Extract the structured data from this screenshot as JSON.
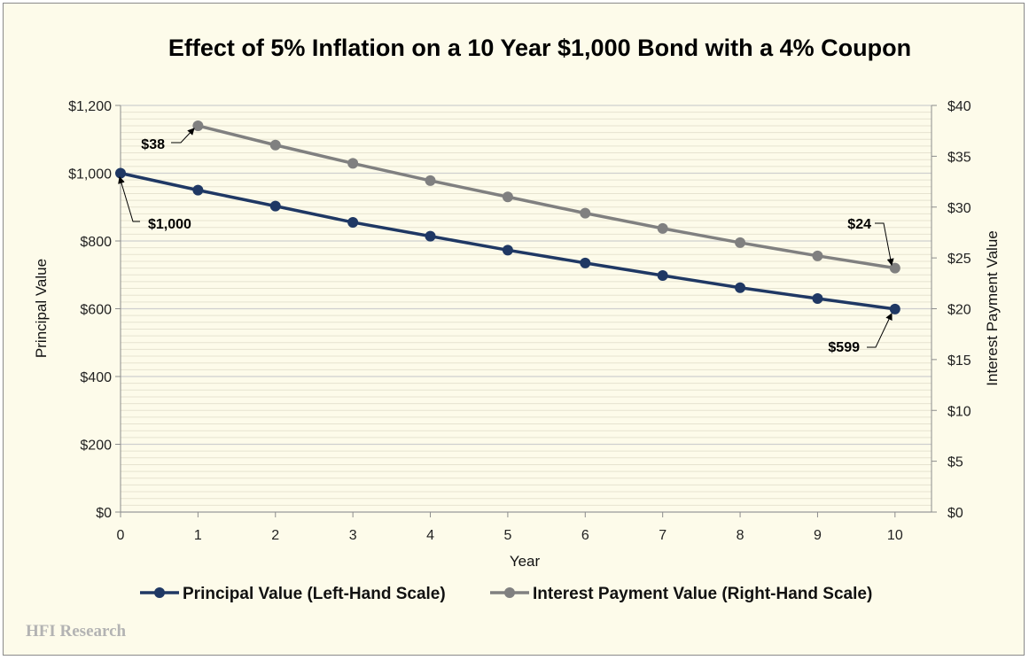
{
  "chart_data": {
    "type": "line",
    "title": "Effect of 5% Inflation on a 10 Year $1,000 Bond with a 4% Coupon",
    "xlabel": "Year",
    "ylabel_left": "Principal Value",
    "ylabel_right": "Interest Payment Value",
    "x": [
      0,
      1,
      2,
      3,
      4,
      5,
      6,
      7,
      8,
      9,
      10
    ],
    "x_tick_labels": [
      "0",
      "1",
      "2",
      "3",
      "4",
      "5",
      "6",
      "7",
      "8",
      "9",
      "10"
    ],
    "ylim_left": [
      0,
      1200
    ],
    "ylim_right": [
      0,
      40
    ],
    "y_ticks_left": [
      "$0",
      "$200",
      "$400",
      "$600",
      "$800",
      "$1,000",
      "$1,200"
    ],
    "y_ticks_right": [
      "$0",
      "$5",
      "$10",
      "$15",
      "$20",
      "$25",
      "$30",
      "$35",
      "$40"
    ],
    "grid": true,
    "legend_position": "bottom",
    "series": [
      {
        "name": "Principal Value (Left-Hand Scale)",
        "axis": "left",
        "color": "#1f3864",
        "x": [
          0,
          1,
          2,
          3,
          4,
          5,
          6,
          7,
          8,
          9,
          10
        ],
        "values": [
          1000,
          950,
          903,
          855,
          814,
          773,
          735,
          698,
          662,
          630,
          599
        ]
      },
      {
        "name": "Interest Payment Value (Right-Hand Scale)",
        "axis": "right",
        "color": "#808080",
        "x": [
          1,
          2,
          3,
          4,
          5,
          6,
          7,
          8,
          9,
          10
        ],
        "values": [
          38,
          36.1,
          34.3,
          32.6,
          31.0,
          29.4,
          27.9,
          26.5,
          25.2,
          24
        ]
      }
    ],
    "annotations": [
      {
        "text": "$1,000",
        "series": 0,
        "x": 0
      },
      {
        "text": "$599",
        "series": 0,
        "x": 10
      },
      {
        "text": "$38",
        "series": 1,
        "x": 1
      },
      {
        "text": "$24",
        "series": 1,
        "x": 10
      }
    ],
    "watermark": "HFI Research"
  }
}
